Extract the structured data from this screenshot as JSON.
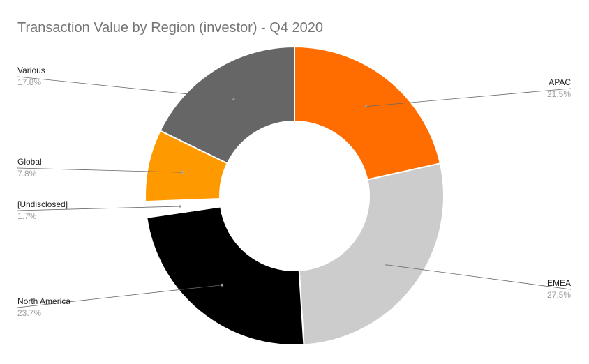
{
  "chart_data": {
    "type": "pie",
    "title": "Transaction Value by Region (investor) - Q4 2020",
    "donut": true,
    "slices": [
      {
        "label": "APAC",
        "value": 21.5,
        "pct_label": "21.5%",
        "color": "#ff6d01"
      },
      {
        "label": "EMEA",
        "value": 27.5,
        "pct_label": "27.5%",
        "color": "#cccccc"
      },
      {
        "label": "North America",
        "value": 23.7,
        "pct_label": "23.7%",
        "color": "#000000"
      },
      {
        "label": "[Undisclosed]",
        "value": 1.7,
        "pct_label": "1.7%",
        "color": "#ffffff"
      },
      {
        "label": "Global",
        "value": 7.8,
        "pct_label": "7.8%",
        "color": "#ff9900"
      },
      {
        "label": "Various",
        "value": 17.8,
        "pct_label": "17.8%",
        "color": "#666666"
      }
    ],
    "legend": "none"
  }
}
